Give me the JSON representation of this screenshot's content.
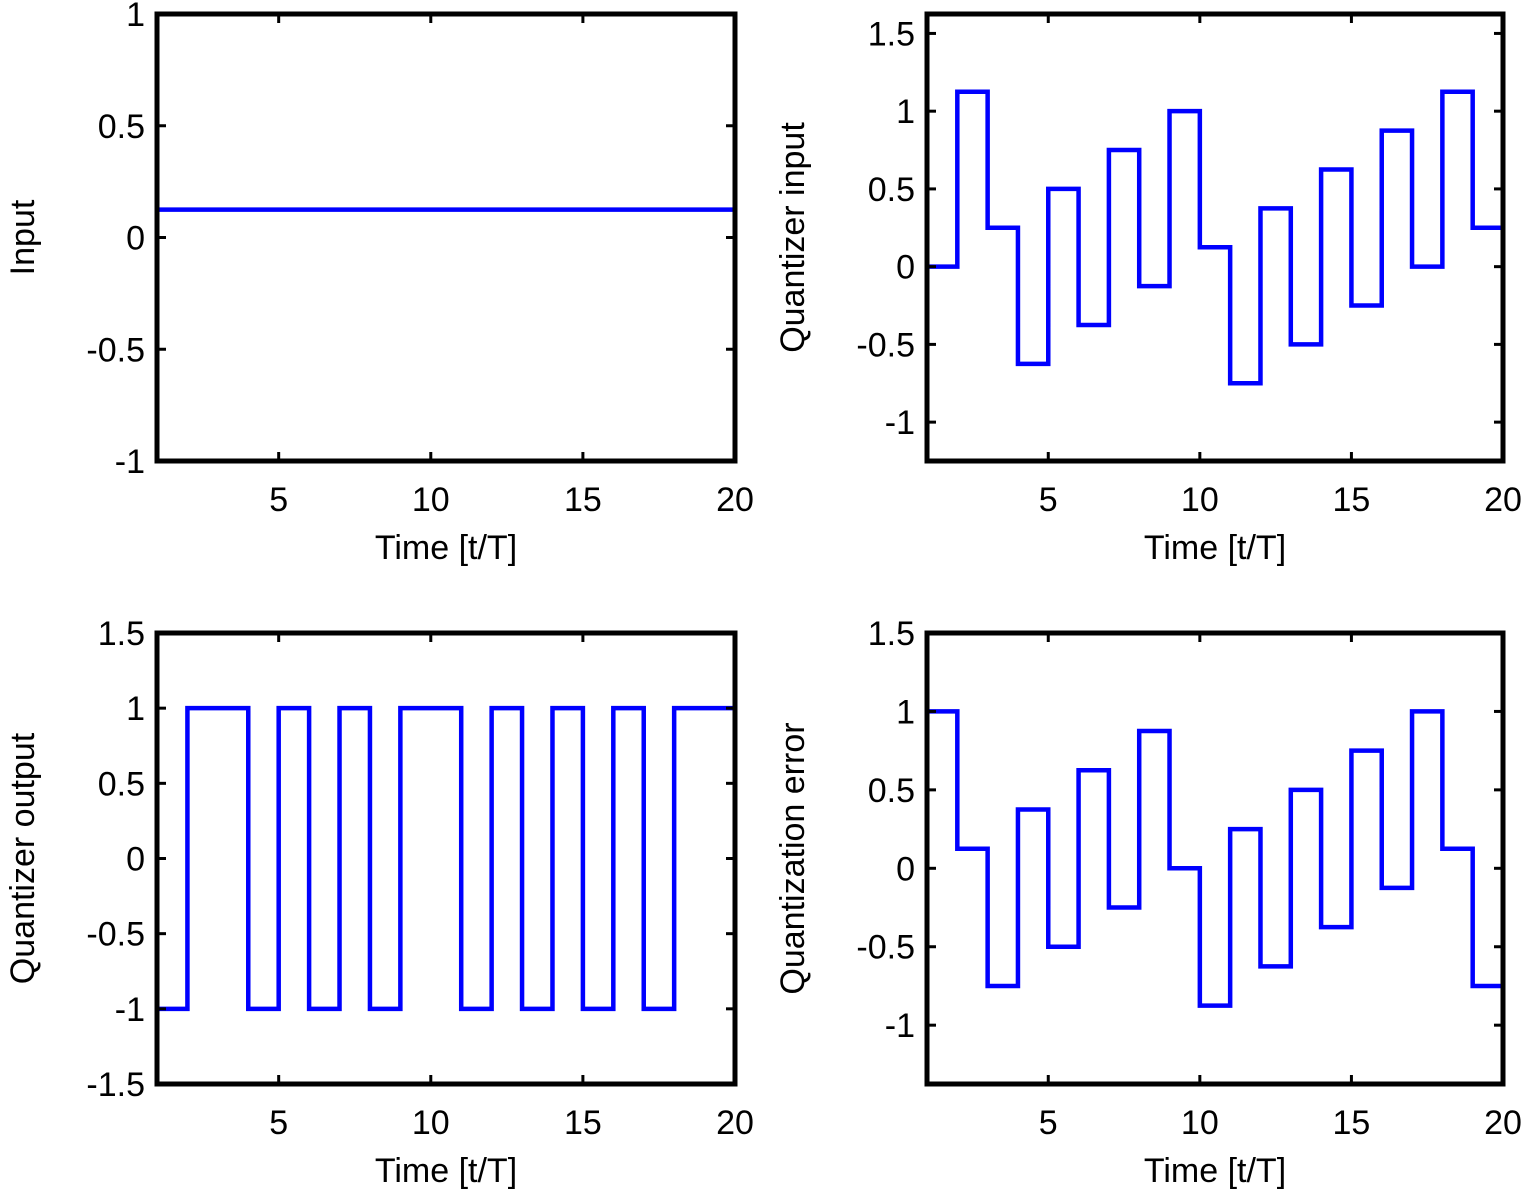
{
  "chart_data": [
    {
      "type": "line",
      "style": "stairs",
      "xlabel": "Time [t/T]",
      "ylabel": "Input",
      "xlim": [
        1,
        20
      ],
      "ylim": [
        -1,
        1
      ],
      "xticks": [
        5,
        10,
        15,
        20
      ],
      "yticks": [
        -1,
        -0.5,
        0,
        0.5,
        1
      ],
      "x": [
        1,
        2,
        3,
        4,
        5,
        6,
        7,
        8,
        9,
        10,
        11,
        12,
        13,
        14,
        15,
        16,
        17,
        18,
        19,
        20
      ],
      "values": [
        0.125,
        0.125,
        0.125,
        0.125,
        0.125,
        0.125,
        0.125,
        0.125,
        0.125,
        0.125,
        0.125,
        0.125,
        0.125,
        0.125,
        0.125,
        0.125,
        0.125,
        0.125,
        0.125,
        0.125
      ],
      "color": "#0000ff",
      "grid": false
    },
    {
      "type": "line",
      "style": "stairs",
      "xlabel": "Time [t/T]",
      "ylabel": "Quantizer input",
      "xlim": [
        1,
        20
      ],
      "ylim": [
        -1.25,
        1.625
      ],
      "xticks": [
        5,
        10,
        15,
        20
      ],
      "yticks": [
        -1,
        -0.5,
        0,
        0.5,
        1,
        1.5
      ],
      "x": [
        1,
        2,
        3,
        4,
        5,
        6,
        7,
        8,
        9,
        10,
        11,
        12,
        13,
        14,
        15,
        16,
        17,
        18,
        19,
        20
      ],
      "values": [
        0,
        1.125,
        0.25,
        -0.625,
        0.5,
        -0.375,
        0.75,
        -0.125,
        1,
        0.125,
        -0.75,
        0.375,
        -0.5,
        0.625,
        -0.25,
        0.875,
        0,
        1.125,
        0.25,
        -0.625
      ],
      "color": "#0000ff",
      "grid": false
    },
    {
      "type": "line",
      "style": "stairs",
      "xlabel": "Time [t/T]",
      "ylabel": "Quantizer output",
      "xlim": [
        1,
        20
      ],
      "ylim": [
        -1.5,
        1.5
      ],
      "xticks": [
        5,
        10,
        15,
        20
      ],
      "yticks": [
        -1.5,
        -1,
        -0.5,
        0,
        0.5,
        1,
        1.5
      ],
      "x": [
        1,
        2,
        3,
        4,
        5,
        6,
        7,
        8,
        9,
        10,
        11,
        12,
        13,
        14,
        15,
        16,
        17,
        18,
        19,
        20
      ],
      "values": [
        -1,
        1,
        1,
        -1,
        1,
        -1,
        1,
        -1,
        1,
        1,
        -1,
        1,
        -1,
        1,
        -1,
        1,
        -1,
        1,
        1,
        -1
      ],
      "color": "#0000ff",
      "grid": false
    },
    {
      "type": "line",
      "style": "stairs",
      "xlabel": "Time [t/T]",
      "ylabel": "Quantization error",
      "xlim": [
        1,
        20
      ],
      "ylim": [
        -1.375,
        1.5
      ],
      "xticks": [
        5,
        10,
        15,
        20
      ],
      "yticks": [
        -1,
        -0.5,
        0,
        0.5,
        1,
        1.5
      ],
      "x": [
        1,
        2,
        3,
        4,
        5,
        6,
        7,
        8,
        9,
        10,
        11,
        12,
        13,
        14,
        15,
        16,
        17,
        18,
        19,
        20
      ],
      "values": [
        1,
        0.125,
        -0.75,
        0.375,
        -0.5,
        0.625,
        -0.25,
        0.875,
        0,
        -0.875,
        0.25,
        -0.625,
        0.5,
        -0.375,
        0.75,
        -0.125,
        1,
        0.125,
        -0.75,
        0.375
      ],
      "color": "#0000ff",
      "grid": false
    }
  ]
}
